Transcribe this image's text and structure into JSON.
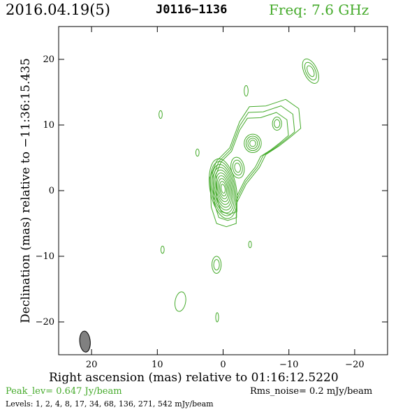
{
  "header": {
    "date": "2016.04.19(5)",
    "source": "J0116−1136",
    "freq": "Freq: 7.6 GHz"
  },
  "footer": {
    "peak": "Peak_lev=  0.647 Jy/beam",
    "noise": "Rms_noise=  0.2 mJy/beam",
    "levels": "Levels:   1,   2,   4,   8,  17,  34,  68, 136, 271, 542 mJy/beam"
  },
  "colors": {
    "contour": "#44aa2a",
    "beam": "#808080"
  },
  "chart_data": {
    "type": "contour",
    "xlabel": "Right ascension (mas) relative to 01:16:12.5220",
    "ylabel": "Declination (mas) relative to −11:36:15.435",
    "xlim": [
      25,
      -25
    ],
    "ylim": [
      -25,
      25
    ],
    "x_ticks": [
      20,
      10,
      0,
      -10,
      -20
    ],
    "x_tick_labels": [
      "20",
      "10",
      "0",
      "−10",
      "−20"
    ],
    "y_ticks": [
      20,
      10,
      0,
      -10,
      -20
    ],
    "y_tick_labels": [
      "20",
      "10",
      "0",
      "−10",
      "−20"
    ],
    "contour_levels_mJy": [
      1,
      2,
      4,
      8,
      17,
      34,
      68,
      136,
      271,
      542
    ],
    "beam": {
      "x": 21,
      "y": -23,
      "major_mas": 3.2,
      "minor_mas": 1.6,
      "pa_deg": -5
    },
    "components": [
      {
        "name": "core",
        "x": 0,
        "y": 0.3,
        "rx": 2.0,
        "ry": 4.6,
        "angle": -10,
        "levels": 10
      },
      {
        "name": "jet-a",
        "x": -2.2,
        "y": 3.5,
        "rx": 1.0,
        "ry": 1.6,
        "angle": -10,
        "levels": 3
      },
      {
        "name": "jet-b",
        "x": -4.5,
        "y": 7.2,
        "rx": 1.3,
        "ry": 1.4,
        "angle": 0,
        "levels": 4
      },
      {
        "name": "jet-c",
        "x": -8.2,
        "y": 10.2,
        "rx": 0.7,
        "ry": 1.0,
        "angle": 0,
        "levels": 2
      },
      {
        "name": "outer-knot",
        "x": -13.3,
        "y": 18.2,
        "rx": 1.0,
        "ry": 2.0,
        "angle": -25,
        "levels": 3
      },
      {
        "name": "south-blob",
        "x": 1.0,
        "y": -11.3,
        "rx": 0.7,
        "ry": 1.3,
        "angle": 0,
        "levels": 2
      },
      {
        "name": "sw-blob",
        "x": 6.5,
        "y": -16.9,
        "rx": 0.8,
        "ry": 1.5,
        "angle": 10,
        "levels": 1
      },
      {
        "name": "spot-1",
        "x": 9.5,
        "y": 11.6,
        "rx": 0.25,
        "ry": 0.6,
        "angle": 0,
        "levels": 1
      },
      {
        "name": "spot-2",
        "x": -3.5,
        "y": 15.2,
        "rx": 0.3,
        "ry": 0.8,
        "angle": 0,
        "levels": 1
      },
      {
        "name": "spot-3",
        "x": 3.9,
        "y": 5.8,
        "rx": 0.25,
        "ry": 0.55,
        "angle": 0,
        "levels": 1
      },
      {
        "name": "spot-4",
        "x": 9.2,
        "y": -9.0,
        "rx": 0.25,
        "ry": 0.55,
        "angle": 0,
        "levels": 1
      },
      {
        "name": "spot-5",
        "x": -4.1,
        "y": -8.2,
        "rx": 0.22,
        "ry": 0.5,
        "angle": 0,
        "levels": 1
      },
      {
        "name": "spot-6",
        "x": 0.9,
        "y": -19.3,
        "rx": 0.22,
        "ry": 0.7,
        "angle": 0,
        "levels": 1
      }
    ],
    "envelope": [
      {
        "x": 1.8,
        "y": -2.5
      },
      {
        "x": 2.0,
        "y": 2.0
      },
      {
        "x": 1.0,
        "y": 4.5
      },
      {
        "x": -1.0,
        "y": 6.5
      },
      {
        "x": -2.5,
        "y": 10.5
      },
      {
        "x": -4.0,
        "y": 12.8
      },
      {
        "x": -6.5,
        "y": 12.9
      },
      {
        "x": -9.5,
        "y": 13.9
      },
      {
        "x": -11.5,
        "y": 12.5
      },
      {
        "x": -11.8,
        "y": 9.5
      },
      {
        "x": -10.3,
        "y": 8.2
      },
      {
        "x": -8.5,
        "y": 6.8
      },
      {
        "x": -6.5,
        "y": 5.5
      },
      {
        "x": -5.5,
        "y": 3.5
      },
      {
        "x": -3.5,
        "y": 1.0
      },
      {
        "x": -2.0,
        "y": -2.0
      },
      {
        "x": -2.0,
        "y": -5.0
      },
      {
        "x": -0.5,
        "y": -5.5
      },
      {
        "x": 1.0,
        "y": -5.0
      }
    ]
  }
}
